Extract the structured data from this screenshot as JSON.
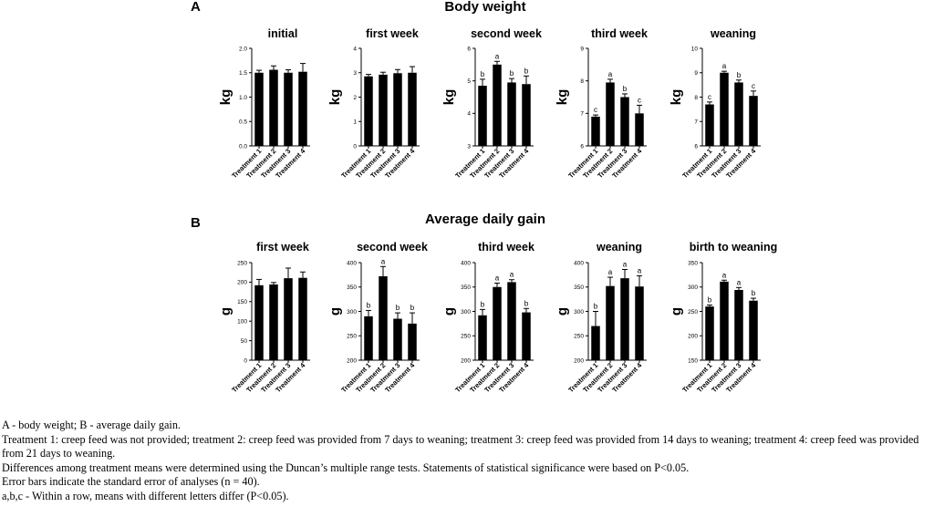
{
  "panels": [
    {
      "letter": "A",
      "title": "Body weight"
    },
    {
      "letter": "B",
      "title": "Average daily gain"
    }
  ],
  "chart_data": [
    {
      "type": "bar",
      "panel": "A",
      "title": "initial",
      "ylabel": "kg",
      "categories": [
        "Treatment 1",
        "Treatment 2",
        "Treatment 3",
        "Treatment 4"
      ],
      "values": [
        1.5,
        1.56,
        1.5,
        1.52
      ],
      "errors": [
        0.05,
        0.08,
        0.06,
        0.17
      ],
      "ylim": [
        0.0,
        2.0
      ],
      "yticks": [
        "0.0",
        "0.5",
        "1.0",
        "1.5",
        "2.0"
      ],
      "yticks_minor": [
        "0.5",
        "1.0",
        "1.5"
      ],
      "significance": [
        "",
        "",
        "",
        ""
      ]
    },
    {
      "type": "bar",
      "panel": "A",
      "title": "first week",
      "ylabel": "kg",
      "categories": [
        "Treatment 1",
        "Treatment 2",
        "Treatment 3",
        "Treatment 4"
      ],
      "values": [
        2.85,
        2.92,
        2.98,
        3.0
      ],
      "errors": [
        0.08,
        0.1,
        0.15,
        0.25
      ],
      "ylim": [
        0,
        4
      ],
      "yticks": [
        "0",
        "1",
        "2",
        "3",
        "4"
      ],
      "significance": [
        "",
        "",
        "",
        ""
      ]
    },
    {
      "type": "bar",
      "panel": "A",
      "title": "second week",
      "ylabel": "kg",
      "categories": [
        "Treatment 1",
        "Treatment 2",
        "Treatment 3",
        "Treatment 4"
      ],
      "values": [
        4.85,
        5.5,
        4.95,
        4.9
      ],
      "errors": [
        0.2,
        0.1,
        0.12,
        0.25
      ],
      "ylim": [
        3,
        6
      ],
      "yticks": [
        "3",
        "4",
        "5",
        "6"
      ],
      "significance": [
        "b",
        "a",
        "b",
        "b"
      ]
    },
    {
      "type": "bar",
      "panel": "A",
      "title": "third week",
      "ylabel": "kg",
      "categories": [
        "Treatment 1",
        "Treatment 2",
        "Treatment 3",
        "Treatment 4"
      ],
      "values": [
        6.9,
        7.95,
        7.5,
        7.0
      ],
      "errors": [
        0.05,
        0.1,
        0.1,
        0.25
      ],
      "ylim": [
        6,
        9
      ],
      "yticks": [
        "6",
        "7",
        "8",
        "9"
      ],
      "significance": [
        "c",
        "a",
        "b",
        "c"
      ]
    },
    {
      "type": "bar",
      "panel": "A",
      "title": "weaning",
      "ylabel": "kg",
      "categories": [
        "Treatment 1",
        "Treatment 2",
        "Treatment 3",
        "Treatment 4"
      ],
      "values": [
        7.7,
        9.0,
        8.6,
        8.05
      ],
      "errors": [
        0.1,
        0.06,
        0.1,
        0.2
      ],
      "ylim": [
        6,
        10
      ],
      "yticks": [
        "6",
        "7",
        "8",
        "9",
        "10"
      ],
      "significance": [
        "c",
        "a",
        "b",
        "c"
      ]
    },
    {
      "type": "bar",
      "panel": "B",
      "title": "first week",
      "ylabel": "g",
      "categories": [
        "Treatment 1",
        "Treatment 2",
        "Treatment 3",
        "Treatment 4"
      ],
      "values": [
        192,
        194,
        210,
        211
      ],
      "errors": [
        15,
        5,
        26,
        15
      ],
      "ylim": [
        0,
        250
      ],
      "yticks": [
        "0",
        "50",
        "100",
        "150",
        "200",
        "250"
      ],
      "significance": [
        "",
        "",
        "",
        ""
      ]
    },
    {
      "type": "bar",
      "panel": "B",
      "title": "second week",
      "ylabel": "g",
      "categories": [
        "Treatment 1",
        "Treatment 2",
        "Treatment 3",
        "Treatment 4"
      ],
      "values": [
        290,
        372,
        285,
        275
      ],
      "errors": [
        12,
        20,
        12,
        22
      ],
      "ylim": [
        200,
        400
      ],
      "yticks": [
        "200",
        "250",
        "300",
        "350",
        "400"
      ],
      "significance": [
        "b",
        "a",
        "b",
        "b"
      ]
    },
    {
      "type": "bar",
      "panel": "B",
      "title": "third week",
      "ylabel": "g",
      "categories": [
        "Treatment 1",
        "Treatment 2",
        "Treatment 3",
        "Treatment 4"
      ],
      "values": [
        292,
        350,
        360,
        298
      ],
      "errors": [
        12,
        8,
        5,
        8
      ],
      "ylim": [
        200,
        400
      ],
      "yticks": [
        "200",
        "250",
        "300",
        "350",
        "400"
      ],
      "significance": [
        "b",
        "a",
        "a",
        "b"
      ]
    },
    {
      "type": "bar",
      "panel": "B",
      "title": "weaning",
      "ylabel": "g",
      "categories": [
        "Treatment 1",
        "Treatment 2",
        "Treatment 3",
        "Treatment 4"
      ],
      "values": [
        270,
        352,
        368,
        351
      ],
      "errors": [
        30,
        18,
        18,
        22
      ],
      "ylim": [
        200,
        400
      ],
      "yticks": [
        "200",
        "250",
        "300",
        "350",
        "400"
      ],
      "significance": [
        "b",
        "a",
        "a",
        "a"
      ]
    },
    {
      "type": "bar",
      "panel": "B",
      "title": "birth to weaning",
      "ylabel": "g",
      "categories": [
        "Treatment 1",
        "Treatment 2",
        "Treatment 3",
        "Treatment 4"
      ],
      "values": [
        260,
        311,
        294,
        272
      ],
      "errors": [
        3,
        3,
        5,
        5
      ],
      "ylim": [
        150,
        350
      ],
      "yticks": [
        "150",
        "200",
        "250",
        "300",
        "350"
      ],
      "significance": [
        "b",
        "a",
        "a",
        "b"
      ]
    }
  ],
  "caption": {
    "line1": "A - body weight; B - average daily gain.",
    "line2": "Treatment 1: creep feed was not provided; treatment 2: creep feed was provided from 7 days to weaning; treatment 3: creep feed was provided from 14 days to weaning; treatment 4: creep feed was provided from 21 days to weaning.",
    "line3": "Differences among treatment means were determined using the Duncan’s multiple range tests. Statements of statistical significance were based on P<0.05.",
    "line4": "Error bars indicate the standard error of analyses (n = 40).",
    "line5": "a,b,c - Within a row, means with different letters differ (P<0.05)."
  }
}
